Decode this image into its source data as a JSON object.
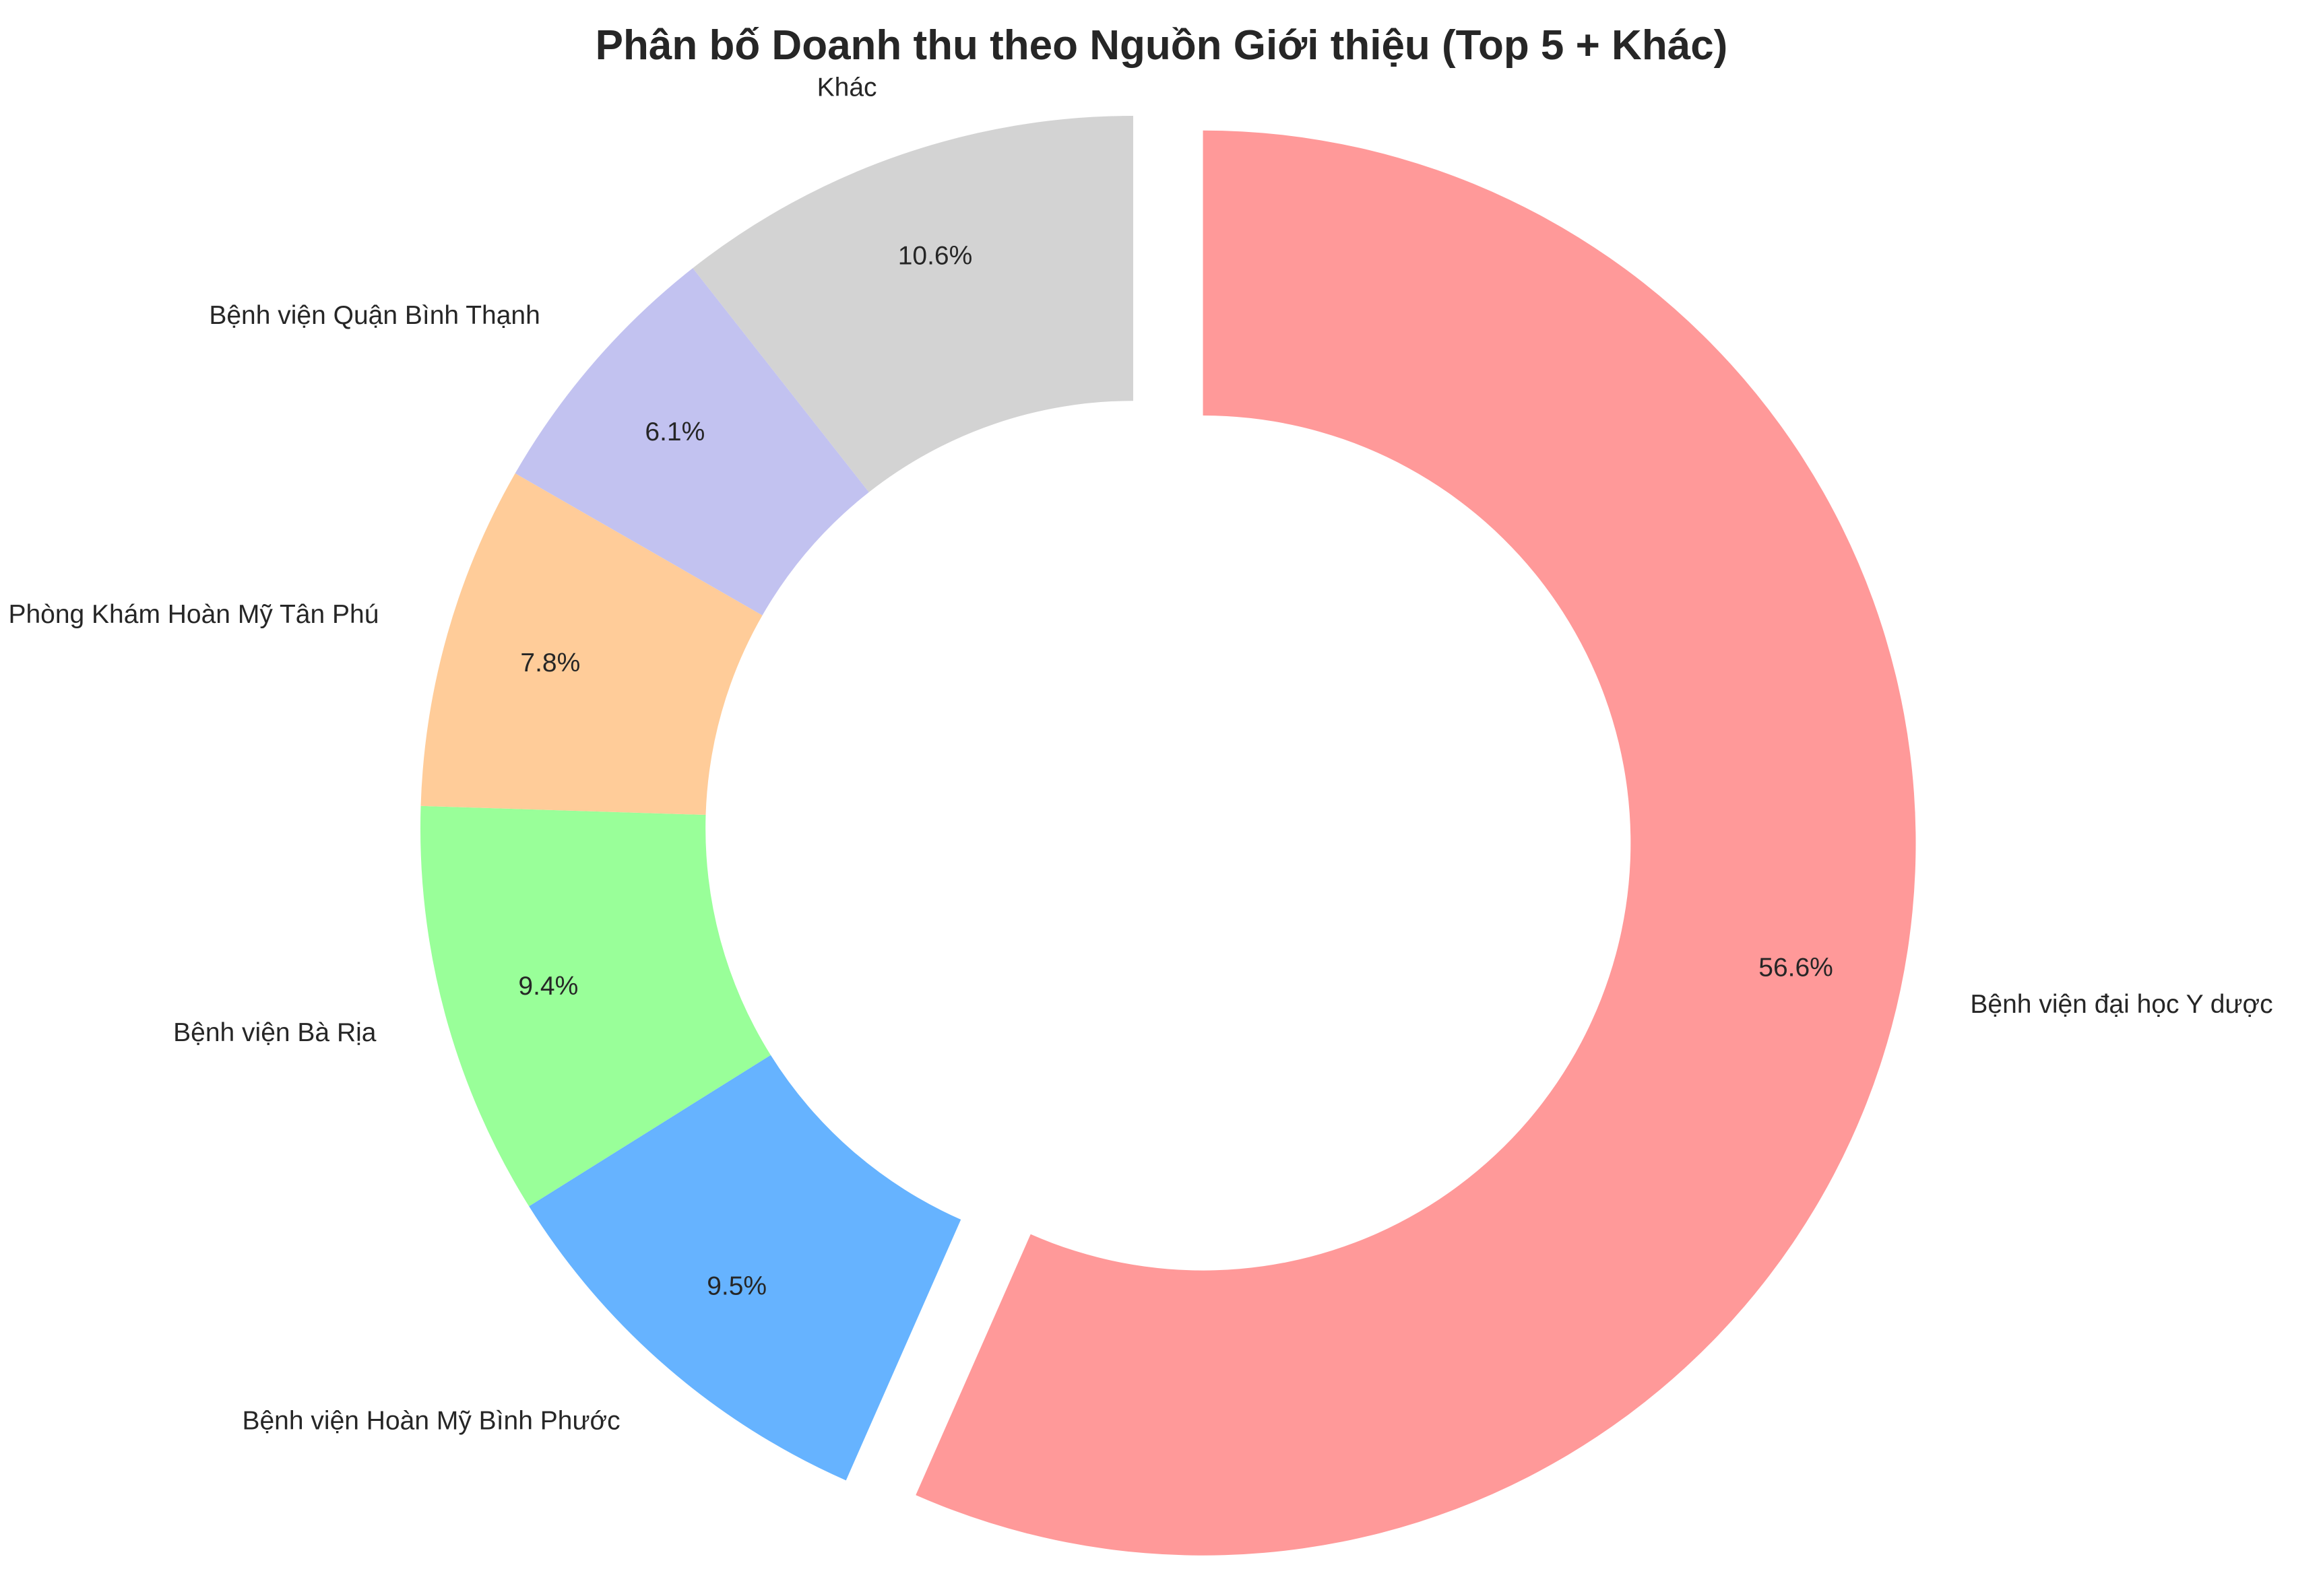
{
  "chart_data": {
    "type": "pie",
    "variant": "donut",
    "title": "Phân bố Doanh thu theo Nguồn Giới thiệu (Top 5 + Khác)",
    "start_angle_deg": 90,
    "direction": "clockwise",
    "hole_fraction": 0.6,
    "slices": [
      {
        "label": "Bệnh viện đại học Y dược",
        "value": 56.6,
        "pct_label": "56.6%",
        "color": "#ff9999",
        "exploded": true
      },
      {
        "label": "Bệnh viện Hoàn Mỹ Bình Phước",
        "value": 9.5,
        "pct_label": "9.5%",
        "color": "#66b3ff",
        "exploded": false
      },
      {
        "label": "Bệnh viện Bà Rịa",
        "value": 9.4,
        "pct_label": "9.4%",
        "color": "#99ff99",
        "exploded": false
      },
      {
        "label": "Phòng Khám Hoàn Mỹ Tân Phú",
        "value": 7.8,
        "pct_label": "7.8%",
        "color": "#ffcc99",
        "exploded": false
      },
      {
        "label": "Bệnh viện Quận Bình Thạnh",
        "value": 6.1,
        "pct_label": "6.1%",
        "color": "#c2c2f0",
        "exploded": false
      },
      {
        "label": "Khác",
        "value": 10.6,
        "pct_label": "10.6%",
        "color": "#d3d3d3",
        "exploded": false
      }
    ]
  }
}
